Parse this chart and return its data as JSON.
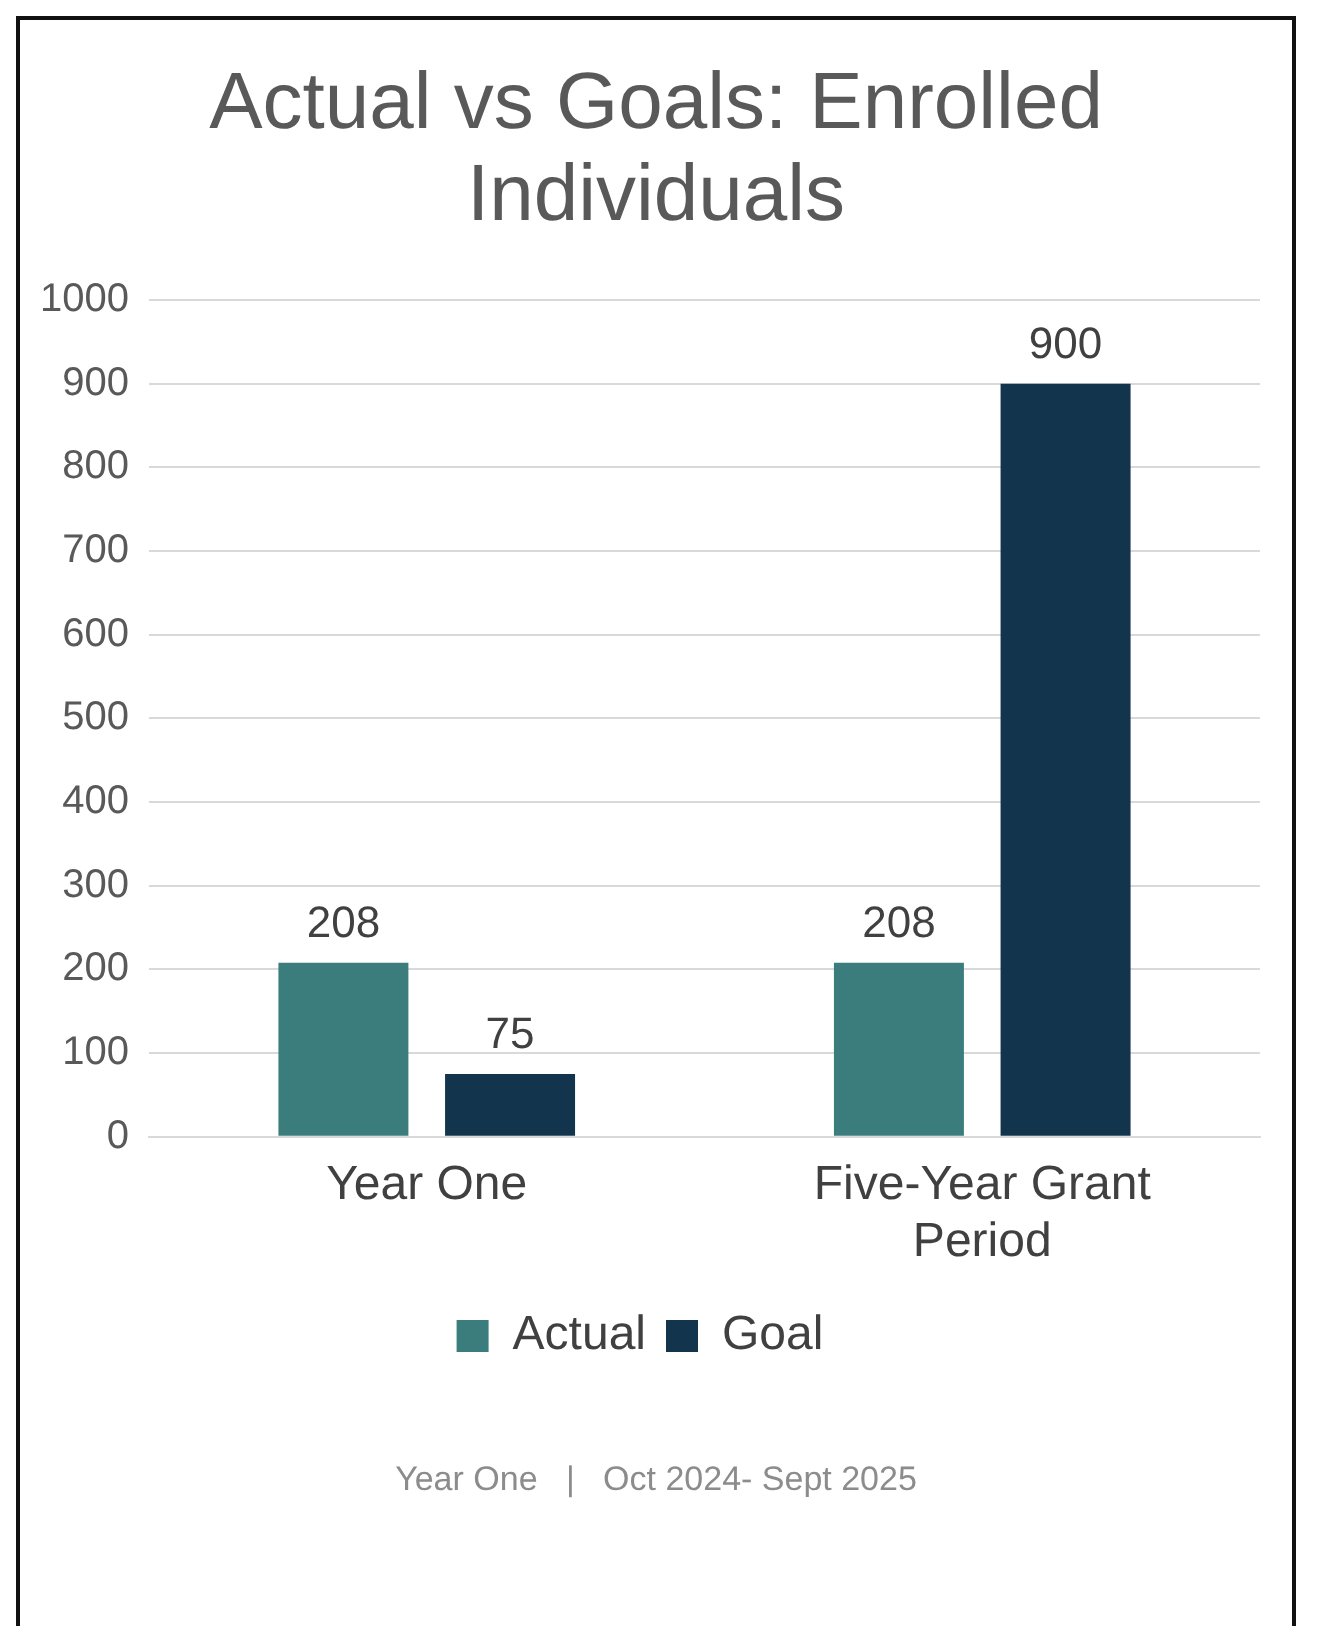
{
  "chart_data": {
    "type": "bar",
    "title": "Actual vs Goals: Enrolled Individuals",
    "categories": [
      "Year One",
      "Five-Year Grant Period"
    ],
    "series": [
      {
        "name": "Actual",
        "color": "#3b7d7d",
        "values": [
          208,
          208
        ]
      },
      {
        "name": "Goal",
        "color": "#12344d",
        "values": [
          75,
          900
        ]
      }
    ],
    "ylim": [
      0,
      1000
    ],
    "yticks": [
      0,
      100,
      200,
      300,
      400,
      500,
      600,
      700,
      800,
      900,
      1000
    ],
    "grid": "y",
    "legend": "bottom",
    "data_labels": true,
    "annotations": [
      "Year One   |   Oct 2024- Sept 2025"
    ]
  }
}
